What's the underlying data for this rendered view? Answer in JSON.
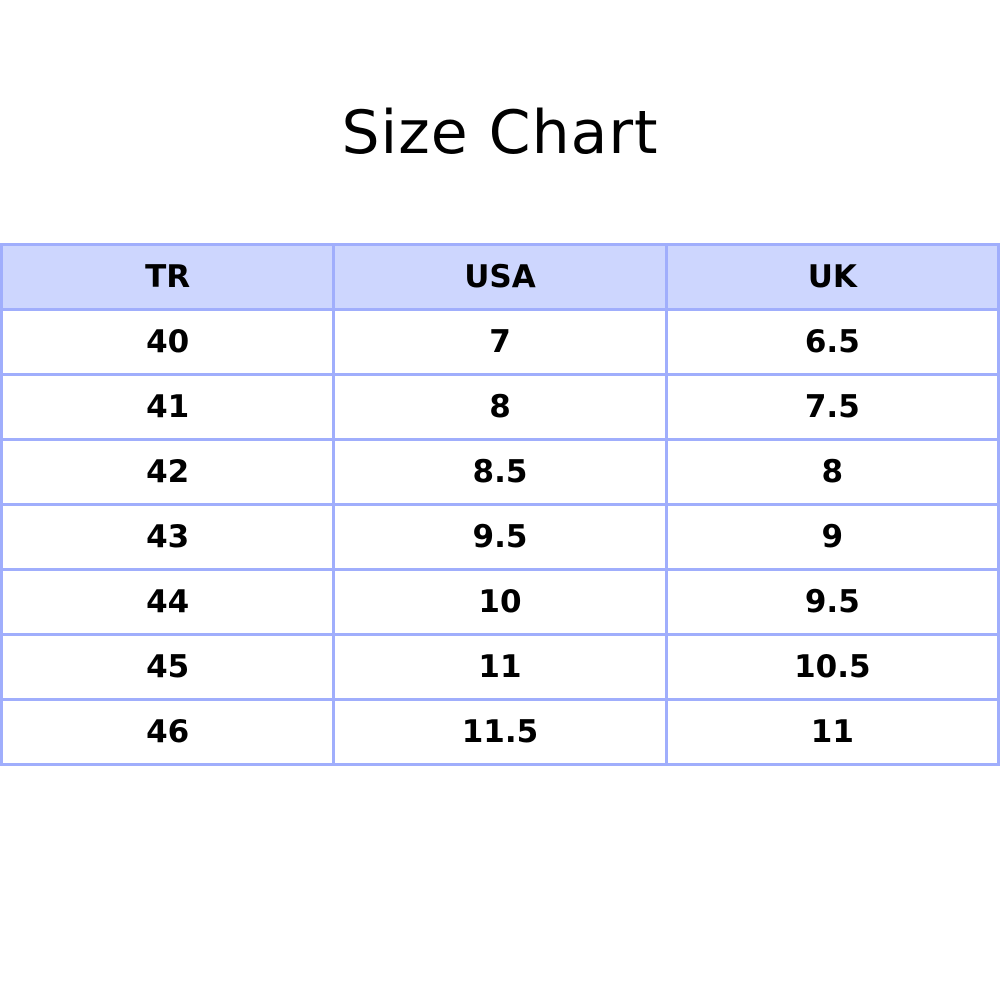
{
  "title": "Size Chart",
  "colors": {
    "border": "#a0aefc",
    "header_bg": "#cdd6fe"
  },
  "table": {
    "headers": [
      "TR",
      "USA",
      "UK"
    ],
    "rows": [
      [
        "40",
        "7",
        "6.5"
      ],
      [
        "41",
        "8",
        "7.5"
      ],
      [
        "42",
        "8.5",
        "8"
      ],
      [
        "43",
        "9.5",
        "9"
      ],
      [
        "44",
        "10",
        "9.5"
      ],
      [
        "45",
        "11",
        "10.5"
      ],
      [
        "46",
        "11.5",
        "11"
      ]
    ]
  }
}
